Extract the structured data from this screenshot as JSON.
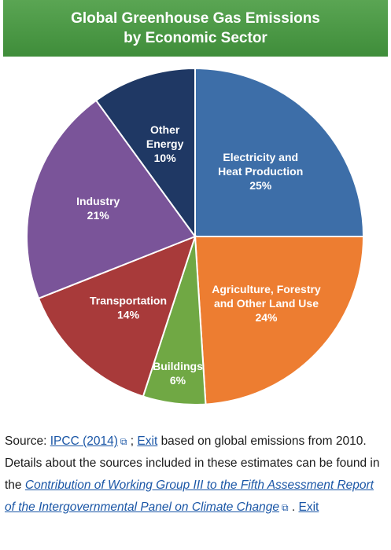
{
  "chart_data": {
    "type": "pie",
    "title": "Global Greenhouse Gas Emissions",
    "subtitle": "by Economic Sector",
    "slices": [
      {
        "label": "Electricity and Heat Production",
        "lines": [
          "Electricity and",
          "Heat Production"
        ],
        "value": 25,
        "pct": "25%",
        "color": "#3d6ea8"
      },
      {
        "label": "Agriculture, Forestry and Other Land Use",
        "lines": [
          "Agriculture, Forestry",
          "and Other Land Use"
        ],
        "value": 24,
        "pct": "24%",
        "color": "#ed7d31"
      },
      {
        "label": "Buildings",
        "lines": [
          "Buildings"
        ],
        "value": 6,
        "pct": "6%",
        "color": "#70a844"
      },
      {
        "label": "Transportation",
        "lines": [
          "Transportation"
        ],
        "value": 14,
        "pct": "14%",
        "color": "#a83a3a"
      },
      {
        "label": "Industry",
        "lines": [
          "Industry"
        ],
        "value": 21,
        "pct": "21%",
        "color": "#7a5499"
      },
      {
        "label": "Other Energy",
        "lines": [
          "Other",
          "Energy"
        ],
        "value": 10,
        "pct": "10%",
        "color": "#1f3864"
      }
    ]
  },
  "caption": {
    "source_prefix": "Source:",
    "ipcc_link": "IPCC (2014)",
    "separator": ";",
    "exit_1": "Exit",
    "text_1": "based on global emissions from 2010. Details about the sources included in these estimates can be found in the",
    "report_link": "Contribution of Working Group III to the Fifth Assessment Report of the Intergovernmental Panel on Climate Change",
    "text_2": ".",
    "exit_2": "Exit",
    "external_icon": "external-link-icon"
  }
}
